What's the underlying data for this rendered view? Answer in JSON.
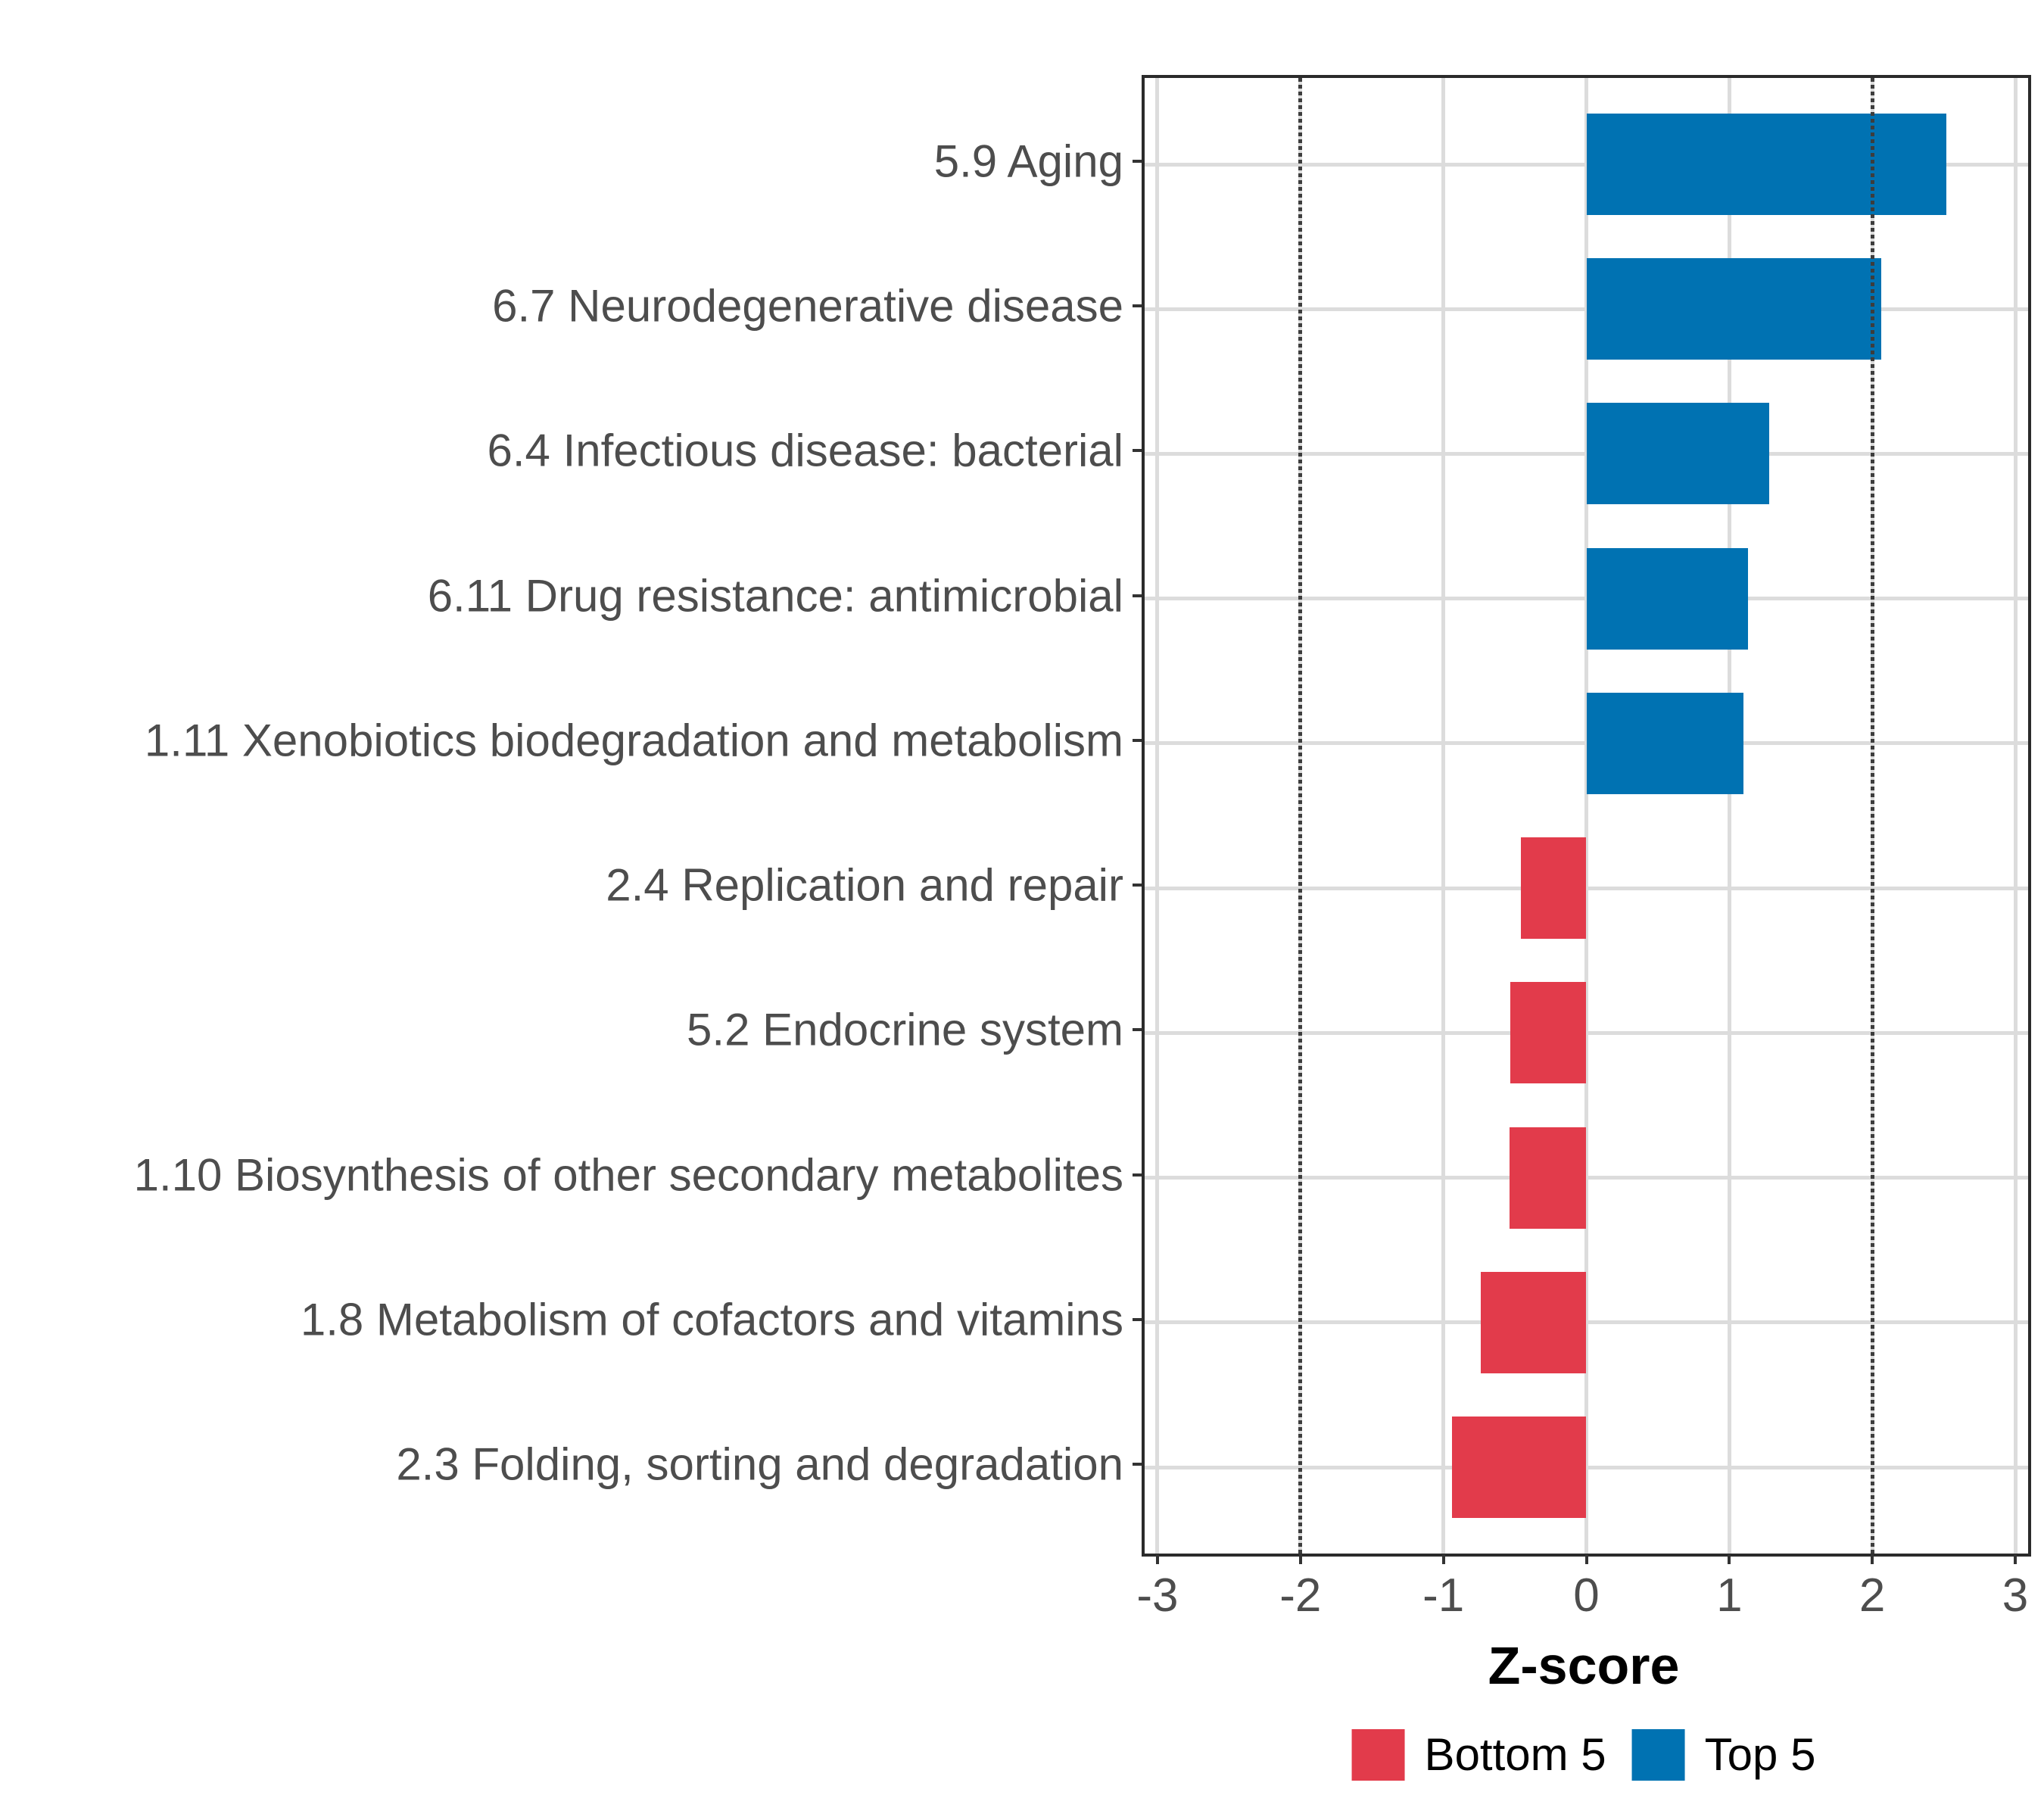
{
  "chart_data": {
    "type": "bar",
    "orientation": "horizontal",
    "title": "",
    "xlabel": "Z-score",
    "ylabel": "",
    "xlim": [
      -3.09,
      3.09
    ],
    "x_tick_values": [
      -3,
      -2,
      -1,
      0,
      1,
      2,
      3
    ],
    "x_tick_labels": [
      "-3",
      "-2",
      "-1",
      "0",
      "1",
      "2",
      "3"
    ],
    "grid": {
      "show": true,
      "color": "#DCDCDC"
    },
    "reference_lines": {
      "values": [
        -2,
        2
      ],
      "style": "dotted",
      "color": "#3D3D3D"
    },
    "bar_width_fraction": 0.7,
    "categories": [
      "5.9 Aging",
      "6.7 Neurodegenerative disease",
      "6.4 Infectious disease: bacterial",
      "6.11 Drug resistance: antimicrobial",
      "1.11 Xenobiotics biodegradation and metabolism",
      "2.4 Replication and repair",
      "5.2 Endocrine system",
      "1.10 Biosynthesis of other secondary metabolites",
      "1.8 Metabolism of cofactors and vitamins",
      "2.3 Folding, sorting and degradation"
    ],
    "values": [
      2.52,
      2.06,
      1.28,
      1.13,
      1.1,
      -0.46,
      -0.53,
      -0.54,
      -0.74,
      -0.94
    ],
    "groups": [
      "Top 5",
      "Top 5",
      "Top 5",
      "Top 5",
      "Top 5",
      "Bottom 5",
      "Bottom 5",
      "Bottom 5",
      "Bottom 5",
      "Bottom 5"
    ],
    "series_colors": {
      "Top 5": "#0072B2",
      "Bottom 5": "#E23B4B"
    },
    "legend": {
      "position": "bottom",
      "entries": [
        {
          "label": "Bottom 5",
          "color": "#E23B4B"
        },
        {
          "label": "Top 5",
          "color": "#0072B2"
        }
      ]
    },
    "text_colors": {
      "axis_text": "#4D4D4D",
      "axis_title": "#000000",
      "legend_text": "#000000"
    }
  }
}
